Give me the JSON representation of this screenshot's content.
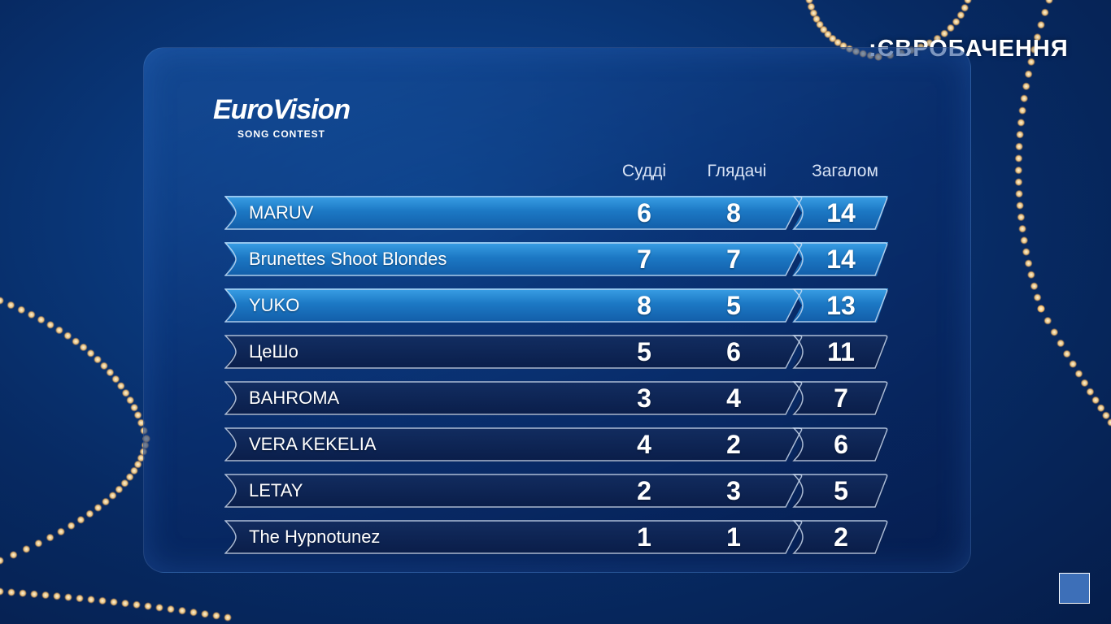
{
  "channel": {
    "name": ":ЄВРОБАЧЕННЯ"
  },
  "logo": {
    "main": "EuroVision",
    "sub": "SONG CONTEST"
  },
  "columns": {
    "judges": "Судді",
    "viewers": "Глядачі",
    "total": "Загалом"
  },
  "rows": [
    {
      "name": "MARUV",
      "judges": "6",
      "viewers": "8",
      "total": "14",
      "highlight": true
    },
    {
      "name": "Brunettes Shoot Blondes",
      "judges": "7",
      "viewers": "7",
      "total": "14",
      "highlight": true
    },
    {
      "name": "YUKO",
      "judges": "8",
      "viewers": "5",
      "total": "13",
      "highlight": true
    },
    {
      "name": "ЦеШо",
      "judges": "5",
      "viewers": "6",
      "total": "11",
      "highlight": false
    },
    {
      "name": "BAHROMA",
      "judges": "3",
      "viewers": "4",
      "total": "7",
      "highlight": false
    },
    {
      "name": "VERA KEKELIA",
      "judges": "4",
      "viewers": "2",
      "total": "6",
      "highlight": false
    },
    {
      "name": "LETAY",
      "judges": "2",
      "viewers": "3",
      "total": "5",
      "highlight": false
    },
    {
      "name": "The Hypnotunez",
      "judges": "1",
      "viewers": "1",
      "total": "2",
      "highlight": false
    }
  ],
  "colors": {
    "highlight": "#2a8bd6",
    "background": "#0a3a7e",
    "glow": "#ffd9a0"
  }
}
